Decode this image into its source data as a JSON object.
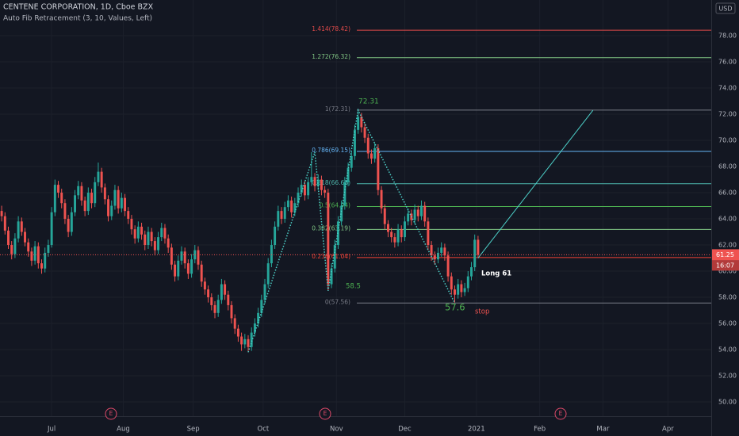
{
  "chart_data": {
    "type": "candlestick",
    "title": "CENTENE CORPORATION, 1D, Cboe BZX",
    "subtitle": "Auto Fib Retracement (3, 10, Values, Left)",
    "currency": "USD",
    "up_color": "#26a69a",
    "down_color": "#ef5350",
    "grid": true,
    "xlim": [
      -0.5,
      213
    ],
    "xticks": [
      {
        "value": 15,
        "label": "Jul"
      },
      {
        "value": 36.5,
        "label": "Aug"
      },
      {
        "value": 57.5,
        "label": "Sep"
      },
      {
        "value": 78.5,
        "label": "Oct"
      },
      {
        "value": 100.5,
        "label": "Nov"
      },
      {
        "value": 121,
        "label": "Dec"
      },
      {
        "value": 142.5,
        "label": "2021"
      },
      {
        "value": 161.5,
        "label": "Feb"
      },
      {
        "value": 180.5,
        "label": "Mar"
      },
      {
        "value": 200,
        "label": "Apr"
      }
    ],
    "ylim": [
      48.91,
      80.73
    ],
    "yticks": [
      {
        "value": 50,
        "label": "50.00"
      },
      {
        "value": 52,
        "label": "52.00"
      },
      {
        "value": 54,
        "label": "54.00"
      },
      {
        "value": 56,
        "label": "56.00"
      },
      {
        "value": 58,
        "label": "58.00"
      },
      {
        "value": 60,
        "label": "60.00"
      },
      {
        "value": 62,
        "label": "62.00"
      },
      {
        "value": 64,
        "label": "64.00"
      },
      {
        "value": 66,
        "label": "66.00"
      },
      {
        "value": 68,
        "label": "68.00"
      },
      {
        "value": 70,
        "label": "70.00"
      },
      {
        "value": 72,
        "label": "72.00"
      },
      {
        "value": 74,
        "label": "74.00"
      },
      {
        "value": 76,
        "label": "76.00"
      },
      {
        "value": 78,
        "label": "78.00"
      }
    ],
    "candles": [
      [
        64.6,
        65.0,
        63.8,
        64.2
      ],
      [
        64.2,
        64.5,
        62.8,
        63.1
      ],
      [
        63.1,
        63.4,
        61.7,
        62.0
      ],
      [
        62.0,
        62.3,
        60.9,
        61.3
      ],
      [
        61.3,
        62.9,
        61.0,
        62.5
      ],
      [
        62.5,
        64.2,
        62.2,
        63.8
      ],
      [
        63.8,
        64.1,
        62.7,
        63.0
      ],
      [
        63.0,
        63.3,
        61.9,
        62.2
      ],
      [
        62.2,
        62.5,
        61.1,
        61.5
      ],
      [
        61.5,
        61.8,
        60.4,
        60.8
      ],
      [
        60.8,
        62.3,
        60.5,
        61.9
      ],
      [
        61.9,
        62.2,
        60.2,
        60.6
      ],
      [
        60.6,
        60.9,
        59.8,
        60.2
      ],
      [
        60.2,
        61.8,
        59.9,
        61.4
      ],
      [
        61.4,
        62.4,
        61.1,
        62.0
      ],
      [
        62.0,
        64.9,
        61.8,
        64.5
      ],
      [
        64.5,
        67.0,
        64.2,
        66.6
      ],
      [
        66.6,
        66.9,
        65.6,
        66.0
      ],
      [
        66.0,
        66.3,
        64.8,
        65.2
      ],
      [
        65.2,
        65.5,
        63.6,
        64.0
      ],
      [
        64.0,
        64.3,
        62.6,
        63.0
      ],
      [
        63.0,
        64.9,
        62.7,
        64.5
      ],
      [
        64.5,
        66.2,
        64.2,
        65.8
      ],
      [
        65.8,
        66.9,
        65.5,
        66.5
      ],
      [
        66.5,
        66.8,
        65.0,
        65.4
      ],
      [
        65.4,
        65.7,
        64.2,
        64.6
      ],
      [
        64.6,
        66.4,
        64.3,
        66.0
      ],
      [
        66.0,
        66.3,
        64.8,
        65.2
      ],
      [
        65.2,
        67.2,
        64.9,
        66.8
      ],
      [
        66.8,
        68.3,
        66.5,
        67.6
      ],
      [
        67.6,
        67.9,
        66.0,
        66.4
      ],
      [
        66.4,
        66.7,
        65.1,
        65.5
      ],
      [
        65.5,
        65.8,
        63.8,
        64.2
      ],
      [
        64.2,
        65.4,
        63.9,
        65.0
      ],
      [
        65.0,
        66.6,
        64.7,
        66.2
      ],
      [
        66.2,
        66.5,
        64.4,
        64.8
      ],
      [
        64.8,
        66.0,
        64.5,
        65.6
      ],
      [
        65.6,
        65.9,
        64.2,
        64.6
      ],
      [
        64.6,
        64.9,
        63.6,
        64.0
      ],
      [
        64.0,
        64.3,
        62.8,
        63.2
      ],
      [
        63.2,
        63.5,
        62.1,
        62.5
      ],
      [
        62.5,
        63.8,
        62.2,
        63.4
      ],
      [
        63.4,
        63.7,
        62.4,
        62.8
      ],
      [
        62.8,
        63.1,
        61.6,
        62.0
      ],
      [
        62.0,
        63.4,
        61.7,
        63.0
      ],
      [
        63.0,
        63.3,
        61.9,
        62.3
      ],
      [
        62.3,
        62.6,
        61.2,
        61.6
      ],
      [
        61.6,
        63.0,
        61.3,
        62.6
      ],
      [
        62.6,
        63.7,
        62.3,
        63.3
      ],
      [
        63.3,
        63.6,
        62.1,
        62.5
      ],
      [
        62.5,
        62.8,
        61.4,
        61.8
      ],
      [
        61.8,
        62.1,
        60.1,
        60.5
      ],
      [
        60.5,
        60.8,
        59.2,
        59.6
      ],
      [
        59.6,
        61.2,
        59.3,
        60.8
      ],
      [
        60.8,
        61.9,
        60.5,
        61.5
      ],
      [
        61.5,
        61.8,
        60.2,
        60.6
      ],
      [
        60.6,
        60.9,
        59.4,
        59.8
      ],
      [
        59.8,
        61.3,
        59.5,
        60.9
      ],
      [
        60.9,
        62.0,
        60.6,
        61.6
      ],
      [
        61.6,
        61.9,
        60.1,
        60.5
      ],
      [
        60.5,
        60.8,
        58.8,
        59.2
      ],
      [
        59.2,
        59.5,
        58.2,
        58.6
      ],
      [
        58.6,
        58.9,
        57.6,
        58.0
      ],
      [
        58.0,
        58.3,
        57.0,
        57.4
      ],
      [
        57.4,
        57.7,
        56.4,
        56.8
      ],
      [
        56.8,
        58.2,
        56.5,
        57.8
      ],
      [
        57.8,
        59.4,
        57.5,
        59.0
      ],
      [
        59.0,
        59.3,
        57.8,
        58.2
      ],
      [
        58.2,
        58.5,
        57.0,
        57.4
      ],
      [
        57.4,
        57.7,
        56.0,
        56.4
      ],
      [
        56.4,
        56.7,
        55.2,
        55.6
      ],
      [
        55.6,
        55.9,
        54.6,
        55.0
      ],
      [
        55.0,
        55.3,
        53.9,
        54.4
      ],
      [
        54.4,
        55.2,
        54.1,
        54.8
      ],
      [
        54.8,
        55.1,
        53.8,
        54.2
      ],
      [
        54.2,
        55.7,
        53.9,
        55.3
      ],
      [
        55.3,
        56.4,
        55.0,
        56.0
      ],
      [
        56.0,
        57.2,
        55.7,
        56.8
      ],
      [
        56.8,
        58.2,
        56.5,
        57.8
      ],
      [
        57.8,
        59.4,
        57.5,
        59.0
      ],
      [
        59.0,
        61.0,
        58.7,
        60.6
      ],
      [
        60.6,
        62.4,
        60.3,
        62.0
      ],
      [
        62.0,
        63.8,
        61.7,
        63.4
      ],
      [
        63.4,
        65.0,
        63.1,
        64.6
      ],
      [
        64.6,
        64.9,
        63.6,
        64.0
      ],
      [
        64.0,
        65.3,
        63.7,
        64.9
      ],
      [
        64.9,
        65.8,
        64.6,
        65.4
      ],
      [
        65.4,
        65.7,
        64.1,
        64.5
      ],
      [
        64.5,
        65.6,
        64.2,
        65.2
      ],
      [
        65.2,
        66.4,
        64.9,
        66.0
      ],
      [
        66.0,
        67.0,
        65.7,
        66.6
      ],
      [
        66.6,
        66.9,
        65.4,
        65.8
      ],
      [
        65.8,
        67.2,
        65.5,
        66.8
      ],
      [
        66.8,
        69.1,
        66.5,
        67.2
      ],
      [
        67.2,
        67.5,
        66.1,
        66.5
      ],
      [
        66.5,
        67.4,
        66.2,
        67.0
      ],
      [
        67.0,
        67.3,
        65.8,
        66.2
      ],
      [
        66.2,
        66.5,
        65.6,
        66.0
      ],
      [
        66.0,
        66.3,
        58.5,
        59.0
      ],
      [
        59.0,
        60.6,
        58.7,
        60.2
      ],
      [
        60.2,
        62.4,
        59.9,
        62.0
      ],
      [
        62.0,
        64.2,
        61.7,
        63.8
      ],
      [
        63.8,
        65.4,
        63.5,
        65.0
      ],
      [
        65.0,
        67.2,
        64.7,
        66.8
      ],
      [
        66.8,
        68.3,
        66.5,
        67.9
      ],
      [
        67.9,
        69.2,
        67.6,
        68.8
      ],
      [
        68.8,
        71.2,
        68.5,
        70.8
      ],
      [
        70.8,
        72.3,
        70.5,
        71.8
      ],
      [
        71.8,
        72.1,
        70.6,
        71.0
      ],
      [
        71.0,
        71.3,
        69.8,
        70.2
      ],
      [
        70.2,
        70.5,
        68.6,
        69.0
      ],
      [
        69.0,
        69.3,
        68.2,
        68.6
      ],
      [
        68.6,
        69.8,
        68.3,
        69.4
      ],
      [
        69.4,
        69.7,
        65.8,
        66.2
      ],
      [
        66.2,
        66.5,
        64.4,
        64.8
      ],
      [
        64.8,
        65.1,
        63.2,
        63.6
      ],
      [
        63.6,
        63.9,
        62.6,
        63.0
      ],
      [
        63.0,
        63.3,
        62.2,
        62.6
      ],
      [
        62.6,
        62.9,
        61.8,
        62.2
      ],
      [
        62.2,
        63.6,
        61.9,
        63.2
      ],
      [
        63.2,
        63.5,
        62.2,
        62.6
      ],
      [
        62.6,
        64.2,
        62.3,
        63.8
      ],
      [
        63.8,
        64.8,
        63.5,
        64.4
      ],
      [
        64.4,
        64.7,
        63.5,
        63.9
      ],
      [
        63.9,
        65.1,
        63.6,
        64.7
      ],
      [
        64.7,
        65.0,
        63.8,
        64.2
      ],
      [
        64.2,
        65.4,
        63.9,
        65.0
      ],
      [
        65.0,
        65.3,
        63.4,
        63.8
      ],
      [
        63.8,
        64.1,
        61.6,
        62.0
      ],
      [
        62.0,
        62.3,
        60.8,
        61.2
      ],
      [
        61.2,
        61.5,
        60.5,
        60.9
      ],
      [
        60.9,
        61.8,
        60.6,
        61.4
      ],
      [
        61.4,
        62.2,
        61.1,
        61.8
      ],
      [
        61.8,
        62.1,
        60.8,
        61.2
      ],
      [
        61.2,
        61.5,
        59.2,
        59.6
      ],
      [
        59.6,
        59.9,
        58.2,
        58.6
      ],
      [
        58.6,
        58.9,
        57.6,
        58.2
      ],
      [
        58.2,
        59.4,
        57.9,
        59.0
      ],
      [
        59.0,
        59.3,
        58.0,
        58.4
      ],
      [
        58.4,
        59.1,
        58.1,
        58.7
      ],
      [
        58.7,
        60.0,
        58.4,
        59.6
      ],
      [
        59.6,
        60.7,
        59.3,
        60.3
      ],
      [
        60.3,
        62.8,
        60.0,
        62.4
      ],
      [
        62.4,
        62.7,
        61.0,
        61.25
      ]
    ],
    "fib_levels": [
      {
        "label": "1.414(78.42)",
        "value": 78.42,
        "color": "#e04a4a"
      },
      {
        "label": "1.272(76.32)",
        "value": 76.32,
        "color": "#81c784"
      },
      {
        "label": "1(72.31)",
        "value": 72.31,
        "color": "#787b86"
      },
      {
        "label": "0.786(69.15)",
        "value": 69.15,
        "color": "#64b5f6"
      },
      {
        "label": "0.618(66.68)",
        "value": 66.68,
        "color": "#4db6ac"
      },
      {
        "label": "0.5(64.94)",
        "value": 64.94,
        "color": "#4caf50"
      },
      {
        "label": "0.382(63.19)",
        "value": 63.19,
        "color": "#81c784"
      },
      {
        "label": "0.236(61.04)",
        "value": 61.04,
        "color": "#f44336"
      },
      {
        "label": "0(57.56)",
        "value": 57.56,
        "color": "#787b86"
      }
    ],
    "zigzag": {
      "x": [
        74,
        94,
        98,
        107,
        136
      ],
      "y": [
        53.8,
        69.1,
        58.5,
        72.31,
        57.56
      ]
    },
    "trend_line": {
      "x": [
        143,
        177.5
      ],
      "y": [
        61.0,
        72.3
      ]
    },
    "annotations": [
      {
        "text": "72.31",
        "color": "#4caf50"
      },
      {
        "text": "58.5",
        "color": "#4caf50"
      },
      {
        "text": "57.6",
        "color": "#4caf50"
      },
      {
        "text": "stop",
        "color": "#ef5350"
      },
      {
        "text": "Long 61",
        "color": "#ffffff"
      }
    ],
    "earnings": [
      "E",
      "E",
      "E"
    ],
    "countdown": "16:07"
  }
}
